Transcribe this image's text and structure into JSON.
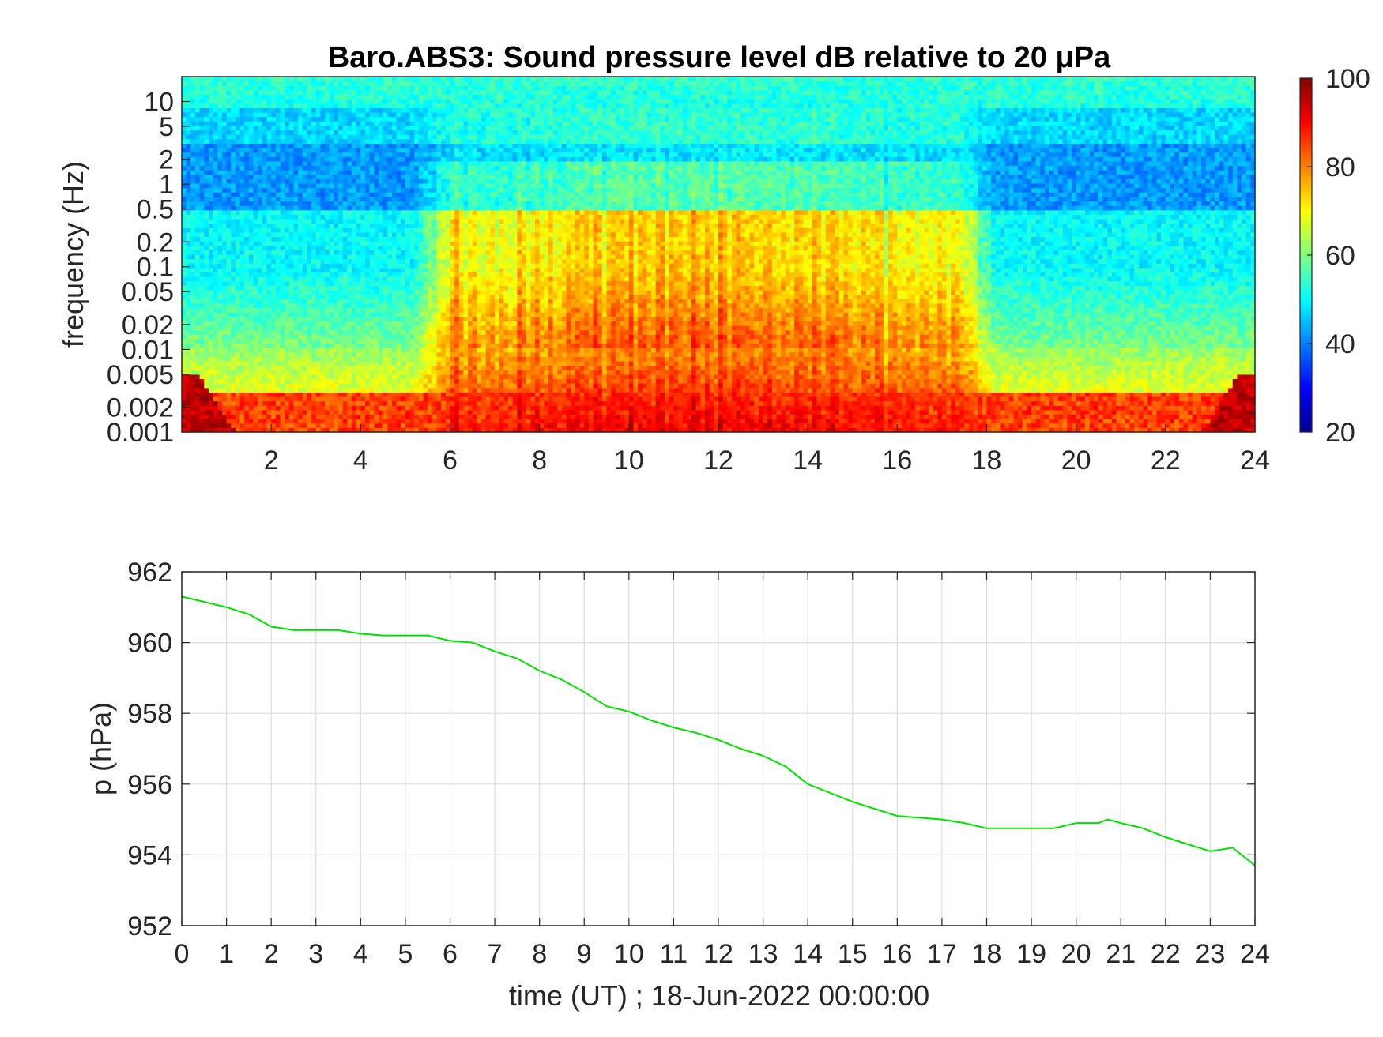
{
  "chart_data": [
    {
      "type": "heatmap",
      "title": "Baro.ABS3: Sound pressure level dB relative to 20 μPa",
      "xlabel": "",
      "ylabel": "frequency (Hz)",
      "xlim": [
        0,
        24
      ],
      "x_ticks": [
        2,
        4,
        6,
        8,
        10,
        12,
        14,
        16,
        18,
        20,
        22,
        24
      ],
      "y_scale": "log",
      "ylim": [
        0.001,
        20
      ],
      "y_ticks": [
        {
          "value": 10,
          "label": "10"
        },
        {
          "value": 5,
          "label": "5"
        },
        {
          "value": 2,
          "label": "2"
        },
        {
          "value": 1,
          "label": "1"
        },
        {
          "value": 0.5,
          "label": "0.5"
        },
        {
          "value": 0.2,
          "label": "0.2"
        },
        {
          "value": 0.1,
          "label": "0.1"
        },
        {
          "value": 0.05,
          "label": "0.05"
        },
        {
          "value": 0.02,
          "label": "0.02"
        },
        {
          "value": 0.01,
          "label": "0.01"
        },
        {
          "value": 0.005,
          "label": "0.005"
        },
        {
          "value": 0.002,
          "label": "0.002"
        },
        {
          "value": 0.001,
          "label": "0.001"
        }
      ],
      "colormap": "jet",
      "colorbar": {
        "ticks": [
          100,
          80,
          60,
          40,
          20
        ],
        "clim": [
          20,
          100
        ],
        "placement": "right"
      },
      "grid": false,
      "levels": {
        "description_units": "dB",
        "quiet_periods_h": [
          [
            0,
            5.5
          ],
          [
            18,
            24
          ]
        ],
        "loud_period_h": [
          5.5,
          18
        ],
        "peak_level": 100,
        "background_level": 45
      }
    },
    {
      "type": "line",
      "title": "",
      "xlabel": "time (UT) ; 18-Jun-2022 00:00:00",
      "ylabel": "p (hPa)",
      "xlim": [
        0,
        24
      ],
      "ylim": [
        952,
        962
      ],
      "x_ticks": [
        0,
        1,
        2,
        3,
        4,
        5,
        6,
        7,
        8,
        9,
        10,
        11,
        12,
        13,
        14,
        15,
        16,
        17,
        18,
        19,
        20,
        21,
        22,
        23,
        24
      ],
      "y_ticks": [
        952,
        954,
        956,
        958,
        960,
        962
      ],
      "grid": true,
      "line_color": "#00e000",
      "series": [
        {
          "x": [
            0,
            0.5,
            1,
            1.5,
            2,
            2.5,
            3,
            3.5,
            4,
            4.5,
            5,
            5.5,
            6,
            6.5,
            7,
            7.5,
            8,
            8.5,
            9,
            9.5,
            10,
            10.5,
            11,
            11.5,
            12,
            12.5,
            13,
            13.5,
            14,
            14.5,
            15,
            15.5,
            16,
            16.5,
            17,
            17.5,
            18,
            18.5,
            19,
            19.5,
            20,
            20.5,
            20.7,
            21,
            21.5,
            22,
            22.5,
            23,
            23.5,
            24
          ],
          "y": [
            961.3,
            961.15,
            961.0,
            960.8,
            960.45,
            960.35,
            960.35,
            960.35,
            960.25,
            960.2,
            960.2,
            960.2,
            960.05,
            960.0,
            959.75,
            959.55,
            959.2,
            958.95,
            958.6,
            958.2,
            958.05,
            957.8,
            957.6,
            957.45,
            957.25,
            957.0,
            956.8,
            956.5,
            956.0,
            955.75,
            955.5,
            955.3,
            955.1,
            955.05,
            955.0,
            954.9,
            954.75,
            954.75,
            954.75,
            954.75,
            954.9,
            954.9,
            955.0,
            954.9,
            954.75,
            954.5,
            954.3,
            954.1,
            954.2,
            953.7
          ]
        }
      ]
    }
  ]
}
